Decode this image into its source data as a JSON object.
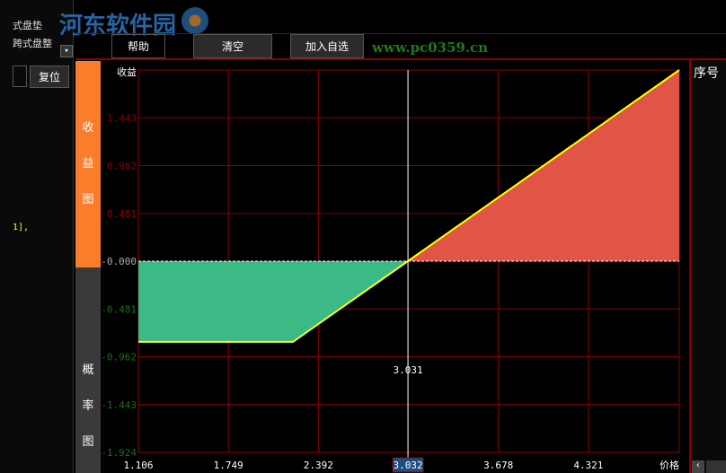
{
  "watermark": {
    "title": "河东软件园",
    "url": "www.pc0359.cn"
  },
  "left_panel": {
    "tabs": [
      "式盘垫",
      "跨式盘整"
    ],
    "reset_label": "复位",
    "code_text": "1],"
  },
  "toolbar": {
    "help": "帮助",
    "clear": "清空",
    "add_watchlist": "加入自选"
  },
  "side_tabs": {
    "payoff": "收\n益\n图",
    "probability": "概\n率\n图"
  },
  "right_panel": {
    "header": "序号"
  },
  "colors": {
    "grid": "#8b0000",
    "profit": "#e05545",
    "loss": "#3cba85",
    "line": "#ffff00",
    "active_tab": "#f97d2b"
  },
  "chart_data": {
    "type": "area",
    "ylabel": "收益",
    "xlabel": "价格",
    "x_ticks": [
      "1.106",
      "1.749",
      "2.392",
      "3.032",
      "3.678",
      "4.321"
    ],
    "y_ticks": [
      "1.443",
      "0.962",
      "0.481",
      "-0.000",
      "-0.481",
      "-0.962",
      "-1.443",
      "-1.924"
    ],
    "xlim": [
      1.106,
      4.97
    ],
    "ylim": [
      -1.924,
      1.924
    ],
    "grid": true,
    "x": [
      1.106,
      2.21,
      3.031,
      4.97
    ],
    "y": [
      -0.812,
      -0.812,
      0,
      1.924
    ],
    "cursor": {
      "x": 3.032,
      "label": "3.032",
      "annotation": "3.031"
    }
  }
}
